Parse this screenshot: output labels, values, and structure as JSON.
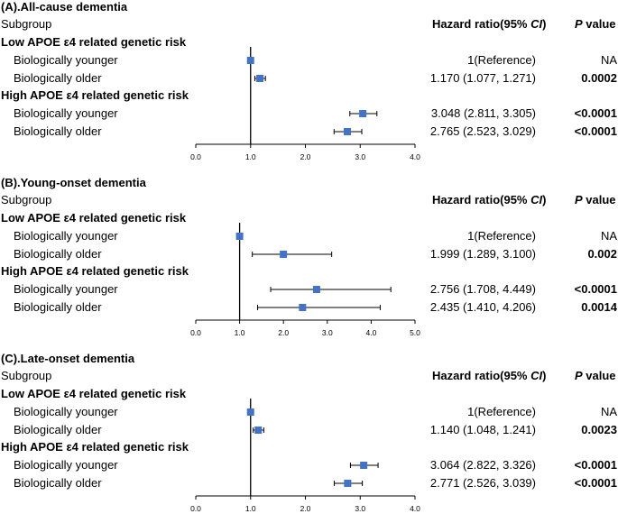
{
  "chart_data": [
    {
      "type": "forest",
      "title": "(A).All-cause dementia",
      "subgroup_header": "Subgroup",
      "hr_header": "Hazard ratio(95% ",
      "hr_header_ci": "CI",
      "hr_header_end": ")",
      "p_header": "P",
      "p_header_rest": " value",
      "xlim": [
        0,
        4
      ],
      "ticks": [
        "0.0",
        "1.0",
        "2.0",
        "3.0",
        "4.0"
      ],
      "tick_values": [
        0,
        1,
        2,
        3,
        4
      ],
      "reference": 1,
      "groups": [
        {
          "name": "Low APOE ε4 related genetic risk",
          "rows": [
            {
              "label": "Biologically younger",
              "hr": 1.0,
              "lo": 1.0,
              "hi": 1.0,
              "hr_text": "1(Reference)",
              "p": "NA",
              "p_bold": false
            },
            {
              "label": "Biologically older",
              "hr": 1.17,
              "lo": 1.077,
              "hi": 1.271,
              "hr_text": "1.170 (1.077, 1.271)",
              "p": "0.0002",
              "p_bold": true
            }
          ]
        },
        {
          "name": "High APOE ε4 related genetic risk",
          "rows": [
            {
              "label": "Biologically younger",
              "hr": 3.048,
              "lo": 2.811,
              "hi": 3.305,
              "hr_text": "3.048 (2.811, 3.305)",
              "p": "<0.0001",
              "p_bold": true
            },
            {
              "label": "Biologically older",
              "hr": 2.765,
              "lo": 2.523,
              "hi": 3.029,
              "hr_text": "2.765 (2.523, 3.029)",
              "p": "<0.0001",
              "p_bold": true
            }
          ]
        }
      ]
    },
    {
      "type": "forest",
      "title": "(B).Young-onset dementia",
      "subgroup_header": "Subgroup",
      "hr_header": "Hazard ratio(95% ",
      "hr_header_ci": "CI",
      "hr_header_end": ")",
      "p_header": "P",
      "p_header_rest": " value",
      "xlim": [
        0,
        5
      ],
      "ticks": [
        "0.0",
        "1.0",
        "2.0",
        "3.0",
        "4.0",
        "5.0"
      ],
      "tick_values": [
        0,
        1,
        2,
        3,
        4,
        5
      ],
      "reference": 1,
      "groups": [
        {
          "name": "Low APOE ε4 related genetic risk",
          "rows": [
            {
              "label": "Biologically younger",
              "hr": 1.0,
              "lo": 1.0,
              "hi": 1.0,
              "hr_text": "1(Reference)",
              "p": "NA",
              "p_bold": false
            },
            {
              "label": "Biologically older",
              "hr": 1.999,
              "lo": 1.289,
              "hi": 3.1,
              "hr_text": "1.999 (1.289, 3.100)",
              "p": "0.002",
              "p_bold": true
            }
          ]
        },
        {
          "name": "High APOE ε4 related genetic risk",
          "rows": [
            {
              "label": "Biologically younger",
              "hr": 2.756,
              "lo": 1.708,
              "hi": 4.449,
              "hr_text": "2.756 (1.708, 4.449)",
              "p": "<0.0001",
              "p_bold": true
            },
            {
              "label": "Biologically older",
              "hr": 2.435,
              "lo": 1.41,
              "hi": 4.206,
              "hr_text": "2.435 (1.410, 4.206)",
              "p": "0.0014",
              "p_bold": true
            }
          ]
        }
      ]
    },
    {
      "type": "forest",
      "title": "(C).Late-onset dementia",
      "subgroup_header": "Subgroup",
      "hr_header": "Hazard ratio(95% ",
      "hr_header_ci": "CI",
      "hr_header_end": ")",
      "p_header": "P",
      "p_header_rest": " value",
      "xlim": [
        0,
        4
      ],
      "ticks": [
        "0.0",
        "1.0",
        "2.0",
        "3.0",
        "4.0"
      ],
      "tick_values": [
        0,
        1,
        2,
        3,
        4
      ],
      "reference": 1,
      "groups": [
        {
          "name": "Low APOE ε4 related genetic risk",
          "rows": [
            {
              "label": "Biologically younger",
              "hr": 1.0,
              "lo": 1.0,
              "hi": 1.0,
              "hr_text": "1(Reference)",
              "p": "NA",
              "p_bold": false
            },
            {
              "label": "Biologically older",
              "hr": 1.14,
              "lo": 1.048,
              "hi": 1.241,
              "hr_text": "1.140 (1.048, 1.241)",
              "p": "0.0023",
              "p_bold": true
            }
          ]
        },
        {
          "name": "High APOE ε4 related genetic risk",
          "rows": [
            {
              "label": "Biologically younger",
              "hr": 3.064,
              "lo": 2.822,
              "hi": 3.326,
              "hr_text": "3.064 (2.822, 3.326)",
              "p": "<0.0001",
              "p_bold": true
            },
            {
              "label": "Biologically older",
              "hr": 2.771,
              "lo": 2.526,
              "hi": 3.039,
              "hr_text": "2.771 (2.526, 3.039)",
              "p": "<0.0001",
              "p_bold": true
            }
          ]
        }
      ]
    }
  ],
  "colors": {
    "marker": "#4472C4",
    "line": "#000000"
  }
}
